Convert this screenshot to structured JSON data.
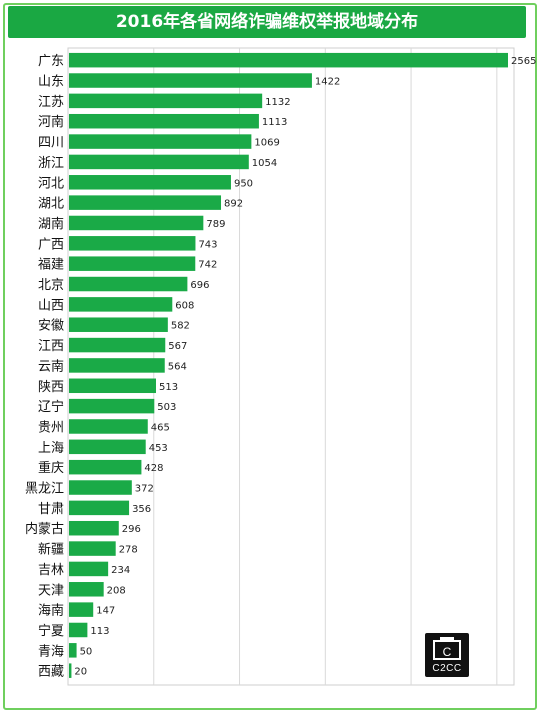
{
  "chart_data": {
    "type": "bar",
    "orientation": "horizontal",
    "title": "2016年各省网络诈骗维权举报地域分布",
    "categories": [
      "广东",
      "山东",
      "江苏",
      "河南",
      "四川",
      "浙江",
      "河北",
      "湖北",
      "湖南",
      "广西",
      "福建",
      "北京",
      "山西",
      "安徽",
      "江西",
      "云南",
      "陕西",
      "辽宁",
      "贵州",
      "上海",
      "重庆",
      "黑龙江",
      "甘肃",
      "内蒙古",
      "新疆",
      "吉林",
      "天津",
      "海南",
      "宁夏",
      "青海",
      "西藏"
    ],
    "values": [
      2565,
      1422,
      1132,
      1113,
      1069,
      1054,
      950,
      892,
      789,
      743,
      742,
      696,
      608,
      582,
      567,
      564,
      513,
      503,
      465,
      453,
      428,
      372,
      356,
      296,
      278,
      234,
      208,
      147,
      113,
      50,
      20
    ],
    "xlim": [
      0,
      2600
    ],
    "grid": true,
    "legend": "none",
    "bar_color": "#1aaa47"
  },
  "watermark": "C2CC"
}
